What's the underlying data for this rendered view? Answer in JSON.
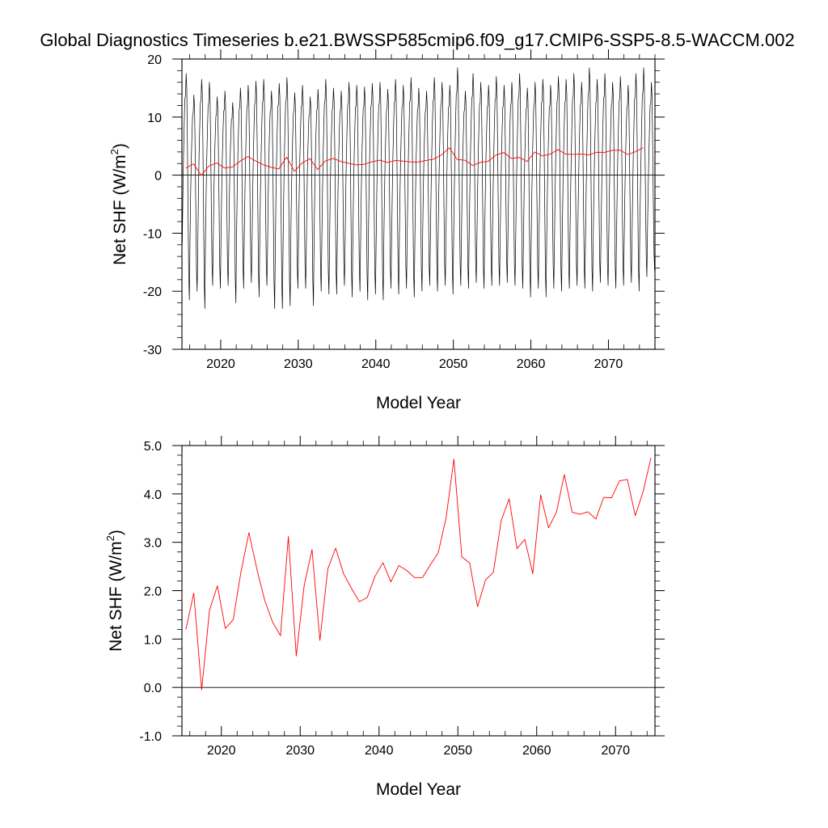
{
  "title": "Global Diagnostics Timeseries b.e21.BWSSP585cmip6.f09_g17.CMIP6-SSP5-8.5-WACCM.002",
  "colors": {
    "monthly": "#000000",
    "annual": "#ff0000",
    "zero_line": "#000000"
  },
  "chart_data": [
    {
      "type": "line",
      "xlabel": "Model Year",
      "ylabel_main": "Net SHF (W/m",
      "ylabel_sup": "2",
      "ylabel_close": ")",
      "xlim": [
        2015,
        2076
      ],
      "ylim": [
        -30,
        20
      ],
      "x_ticks": [
        2020,
        2030,
        2040,
        2050,
        2060,
        2070
      ],
      "x_tick_labels": [
        "2020",
        "2030",
        "2040",
        "2050",
        "2060",
        "2070"
      ],
      "y_ticks": [
        -30,
        -20,
        -10,
        0,
        10,
        20
      ],
      "y_tick_labels": [
        "-30",
        "-20",
        "-10",
        "0",
        "10",
        "20"
      ],
      "grid": false,
      "reference_line_y": 0,
      "series": [
        {
          "style": "monthly",
          "years": [
            2015,
            2016,
            2017,
            2018,
            2019,
            2020,
            2021,
            2022,
            2023,
            2024,
            2025,
            2026,
            2027,
            2028,
            2029,
            2030,
            2031,
            2032,
            2033,
            2034,
            2035,
            2036,
            2037,
            2038,
            2039,
            2040,
            2041,
            2042,
            2043,
            2044,
            2045,
            2046,
            2047,
            2048,
            2049,
            2050,
            2051,
            2052,
            2053,
            2054,
            2055,
            2056,
            2057,
            2058,
            2059,
            2060,
            2061,
            2062,
            2063,
            2064,
            2065,
            2066,
            2067,
            2068,
            2069,
            2070,
            2071,
            2072,
            2073,
            2074,
            2075
          ],
          "annual_max": [
            17.5,
            13.8,
            16.5,
            16.0,
            13.5,
            14.5,
            12.5,
            15.0,
            15.5,
            16.2,
            16.5,
            14.5,
            15.8,
            16.8,
            14.2,
            15.5,
            13.5,
            14.8,
            16.5,
            15.0,
            14.5,
            16.0,
            15.5,
            15.2,
            15.8,
            16.0,
            14.8,
            16.5,
            15.5,
            16.8,
            15.0,
            14.5,
            16.8,
            16.0,
            15.5,
            18.5,
            14.5,
            17.5,
            16.0,
            15.5,
            17.0,
            15.5,
            16.0,
            17.5,
            15.0,
            16.0,
            16.5,
            15.5,
            17.0,
            16.5,
            17.5,
            16.0,
            18.5,
            16.5,
            17.5,
            16.0,
            17.0,
            15.5,
            17.5,
            18.5,
            16.0
          ],
          "annual_min": [
            -21.5,
            -20.0,
            -23.0,
            -19.0,
            -19.5,
            -19.0,
            -22.0,
            -19.5,
            -18.5,
            -21.0,
            -19.0,
            -23.0,
            -23.0,
            -22.5,
            -19.5,
            -19.5,
            -22.5,
            -20.0,
            -20.5,
            -20.5,
            -19.0,
            -21.0,
            -20.0,
            -21.5,
            -20.5,
            -21.5,
            -19.5,
            -20.5,
            -19.5,
            -21.0,
            -20.0,
            -19.0,
            -20.0,
            -19.0,
            -20.5,
            -19.0,
            -19.5,
            -18.5,
            -19.5,
            -19.0,
            -19.0,
            -18.5,
            -19.0,
            -19.5,
            -21.0,
            -19.5,
            -21.0,
            -19.5,
            -20.0,
            -19.5,
            -19.0,
            -19.5,
            -20.0,
            -18.5,
            -19.0,
            -19.5,
            -19.0,
            -18.5,
            -20.0,
            -17.5,
            -16.5
          ]
        },
        {
          "style": "annual",
          "x": [
            2015.5,
            2016.5,
            2017.5,
            2018.5,
            2019.5,
            2020.5,
            2021.5,
            2022.5,
            2023.5,
            2024.5,
            2025.5,
            2026.5,
            2027.5,
            2028.5,
            2029.5,
            2030.5,
            2031.5,
            2032.5,
            2033.5,
            2034.5,
            2035.5,
            2036.5,
            2037.5,
            2038.5,
            2039.5,
            2040.5,
            2041.5,
            2042.5,
            2043.5,
            2044.5,
            2045.5,
            2046.5,
            2047.5,
            2048.5,
            2049.5,
            2050.5,
            2051.5,
            2052.5,
            2053.5,
            2054.5,
            2055.5,
            2056.5,
            2057.5,
            2058.5,
            2059.5,
            2060.5,
            2061.5,
            2062.5,
            2063.5,
            2064.5,
            2065.5,
            2066.5,
            2067.5,
            2068.5,
            2069.5,
            2070.5,
            2071.5,
            2072.5,
            2073.5,
            2074.5
          ],
          "y": [
            1.2,
            1.95,
            -0.05,
            1.6,
            2.1,
            1.22,
            1.4,
            2.4,
            3.2,
            2.45,
            1.8,
            1.35,
            1.07,
            3.12,
            0.65,
            2.1,
            2.85,
            0.97,
            2.45,
            2.88,
            2.35,
            2.05,
            1.77,
            1.86,
            2.3,
            2.58,
            2.18,
            2.52,
            2.42,
            2.27,
            2.27,
            2.53,
            2.78,
            3.5,
            4.72,
            2.7,
            2.57,
            1.67,
            2.22,
            2.38,
            3.45,
            3.9,
            2.87,
            3.06,
            2.35,
            3.98,
            3.3,
            3.62,
            4.4,
            3.62,
            3.58,
            3.63,
            3.48,
            3.93,
            3.92,
            4.27,
            4.3,
            3.55,
            4.05,
            4.75
          ]
        }
      ]
    },
    {
      "type": "line",
      "xlabel": "Model Year",
      "ylabel_main": "Net SHF (W/m",
      "ylabel_sup": "2",
      "ylabel_close": ")",
      "xlim": [
        2015,
        2075
      ],
      "ylim": [
        -1.0,
        5.0
      ],
      "x_ticks": [
        2020,
        2030,
        2040,
        2050,
        2060,
        2070
      ],
      "x_tick_labels": [
        "2020",
        "2030",
        "2040",
        "2050",
        "2060",
        "2070"
      ],
      "y_ticks": [
        -1.0,
        0.0,
        1.0,
        2.0,
        3.0,
        4.0,
        5.0
      ],
      "y_tick_labels": [
        "-1.0",
        "0.0",
        "1.0",
        "2.0",
        "3.0",
        "4.0",
        "5.0"
      ],
      "grid": false,
      "reference_line_y": 0,
      "series": [
        {
          "style": "annual",
          "x": [
            2015.5,
            2016.5,
            2017.5,
            2018.5,
            2019.5,
            2020.5,
            2021.5,
            2022.5,
            2023.5,
            2024.5,
            2025.5,
            2026.5,
            2027.5,
            2028.5,
            2029.5,
            2030.5,
            2031.5,
            2032.5,
            2033.5,
            2034.5,
            2035.5,
            2036.5,
            2037.5,
            2038.5,
            2039.5,
            2040.5,
            2041.5,
            2042.5,
            2043.5,
            2044.5,
            2045.5,
            2046.5,
            2047.5,
            2048.5,
            2049.5,
            2050.5,
            2051.5,
            2052.5,
            2053.5,
            2054.5,
            2055.5,
            2056.5,
            2057.5,
            2058.5,
            2059.5,
            2060.5,
            2061.5,
            2062.5,
            2063.5,
            2064.5,
            2065.5,
            2066.5,
            2067.5,
            2068.5,
            2069.5,
            2070.5,
            2071.5,
            2072.5,
            2073.5,
            2074.5
          ],
          "y": [
            1.2,
            1.95,
            -0.05,
            1.6,
            2.1,
            1.22,
            1.4,
            2.4,
            3.2,
            2.45,
            1.8,
            1.35,
            1.07,
            3.12,
            0.65,
            2.1,
            2.85,
            0.97,
            2.45,
            2.88,
            2.35,
            2.05,
            1.77,
            1.86,
            2.3,
            2.58,
            2.18,
            2.52,
            2.42,
            2.27,
            2.27,
            2.53,
            2.78,
            3.5,
            4.72,
            2.7,
            2.57,
            1.67,
            2.22,
            2.38,
            3.45,
            3.9,
            2.87,
            3.06,
            2.35,
            3.98,
            3.3,
            3.62,
            4.4,
            3.62,
            3.58,
            3.63,
            3.48,
            3.93,
            3.92,
            4.27,
            4.3,
            3.55,
            4.05,
            4.75
          ]
        }
      ]
    }
  ]
}
